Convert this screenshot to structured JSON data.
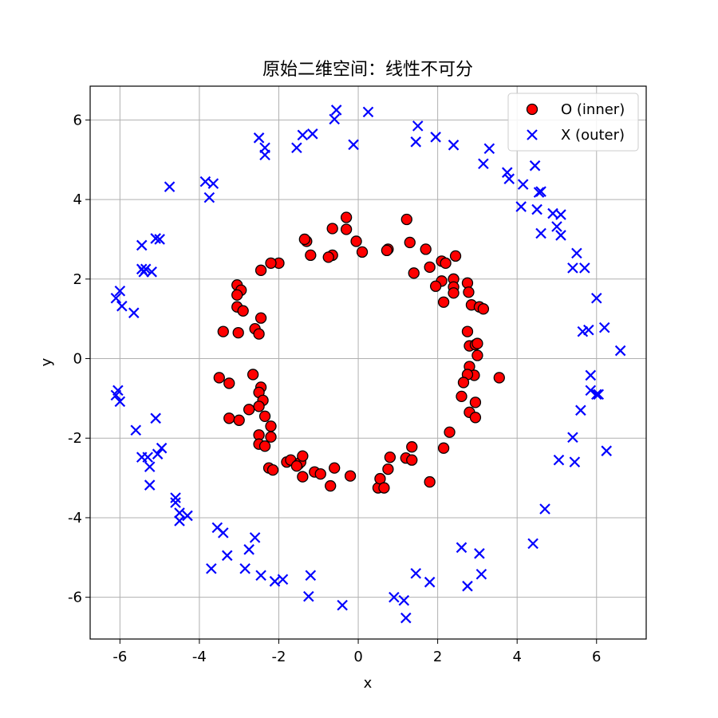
{
  "chart_data": {
    "type": "scatter",
    "title": "原始二维空间：线性不可分",
    "xlabel": "x",
    "ylabel": "y",
    "xlim": [
      -6.75,
      7.25
    ],
    "ylim": [
      -7.05,
      6.85
    ],
    "xticks": [
      -6,
      -4,
      -2,
      0,
      2,
      4,
      6
    ],
    "yticks": [
      -6,
      -4,
      -2,
      0,
      2,
      4,
      6
    ],
    "xtick_labels": [
      "-6",
      "-4",
      "-2",
      "0",
      "2",
      "4",
      "6"
    ],
    "ytick_labels": [
      "-6",
      "-4",
      "-2",
      "0",
      "2",
      "4",
      "6"
    ],
    "grid": true,
    "legend_position": "top-right",
    "series": [
      {
        "name": "O (inner)",
        "marker": "circle",
        "color": "#ff0000",
        "edge_color": "#000000",
        "points": [
          [
            -0.3,
            3.55
          ],
          [
            -0.65,
            3.27
          ],
          [
            -0.3,
            3.25
          ],
          [
            -0.05,
            2.95
          ],
          [
            0.1,
            2.68
          ],
          [
            -0.65,
            2.6
          ],
          [
            -0.75,
            2.55
          ],
          [
            -1.3,
            2.95
          ],
          [
            -1.35,
            3.0
          ],
          [
            -1.2,
            2.6
          ],
          [
            -2.0,
            2.4
          ],
          [
            -2.2,
            2.4
          ],
          [
            -2.45,
            2.22
          ],
          [
            0.75,
            2.75
          ],
          [
            0.72,
            2.72
          ],
          [
            1.22,
            3.5
          ],
          [
            1.3,
            2.92
          ],
          [
            1.7,
            2.75
          ],
          [
            1.4,
            2.15
          ],
          [
            1.8,
            2.3
          ],
          [
            2.1,
            2.45
          ],
          [
            2.2,
            2.4
          ],
          [
            2.45,
            2.58
          ],
          [
            2.1,
            1.95
          ],
          [
            2.4,
            2.0
          ],
          [
            1.95,
            1.82
          ],
          [
            2.4,
            1.8
          ],
          [
            2.4,
            1.65
          ],
          [
            2.15,
            1.42
          ],
          [
            2.75,
            1.9
          ],
          [
            2.78,
            1.67
          ],
          [
            2.85,
            1.35
          ],
          [
            3.05,
            1.3
          ],
          [
            3.15,
            1.25
          ],
          [
            -3.05,
            1.85
          ],
          [
            -2.95,
            1.72
          ],
          [
            -3.05,
            1.6
          ],
          [
            -3.05,
            1.3
          ],
          [
            -2.9,
            1.2
          ],
          [
            -2.45,
            1.02
          ],
          [
            -3.4,
            0.68
          ],
          [
            -3.02,
            0.65
          ],
          [
            -2.6,
            0.75
          ],
          [
            -2.5,
            0.62
          ],
          [
            2.75,
            0.68
          ],
          [
            2.8,
            0.32
          ],
          [
            2.95,
            0.35
          ],
          [
            3.0,
            0.38
          ],
          [
            3.0,
            0.08
          ],
          [
            2.8,
            -0.2
          ],
          [
            2.92,
            -0.42
          ],
          [
            2.75,
            -0.4
          ],
          [
            2.65,
            -0.6
          ],
          [
            2.6,
            -0.95
          ],
          [
            3.55,
            -0.48
          ],
          [
            -3.5,
            -0.48
          ],
          [
            -3.25,
            -0.62
          ],
          [
            -2.65,
            -0.4
          ],
          [
            -2.45,
            -0.72
          ],
          [
            -2.5,
            -0.85
          ],
          [
            -2.4,
            -1.05
          ],
          [
            -2.5,
            -1.2
          ],
          [
            -2.75,
            -1.28
          ],
          [
            -3.25,
            -1.5
          ],
          [
            -3.0,
            -1.55
          ],
          [
            -2.35,
            -1.45
          ],
          [
            -2.2,
            -1.7
          ],
          [
            -2.2,
            -1.97
          ],
          [
            -2.5,
            -1.92
          ],
          [
            -2.5,
            -2.15
          ],
          [
            -2.35,
            -2.2
          ],
          [
            -2.25,
            -2.75
          ],
          [
            -2.15,
            -2.8
          ],
          [
            2.95,
            -1.1
          ],
          [
            2.8,
            -1.35
          ],
          [
            2.95,
            -1.48
          ],
          [
            2.3,
            -1.85
          ],
          [
            2.15,
            -2.25
          ],
          [
            -1.8,
            -2.6
          ],
          [
            -1.7,
            -2.55
          ],
          [
            -1.5,
            -2.65
          ],
          [
            -1.45,
            -2.6
          ],
          [
            -1.4,
            -2.45
          ],
          [
            -1.55,
            -2.7
          ],
          [
            -1.4,
            -2.97
          ],
          [
            -1.1,
            -2.85
          ],
          [
            -0.95,
            -2.9
          ],
          [
            -0.7,
            -3.2
          ],
          [
            -0.6,
            -2.75
          ],
          [
            -0.2,
            -2.95
          ],
          [
            0.5,
            -3.25
          ],
          [
            0.55,
            -3.02
          ],
          [
            0.65,
            -3.25
          ],
          [
            0.75,
            -2.78
          ],
          [
            0.8,
            -2.48
          ],
          [
            1.2,
            -2.5
          ],
          [
            1.35,
            -2.55
          ],
          [
            1.35,
            -2.22
          ],
          [
            1.8,
            -3.1
          ]
        ]
      },
      {
        "name": "X (outer)",
        "marker": "x",
        "color": "#0000ff",
        "points": [
          [
            -0.55,
            6.25
          ],
          [
            -0.6,
            6.02
          ],
          [
            0.25,
            6.2
          ],
          [
            -0.12,
            5.38
          ],
          [
            -2.5,
            5.55
          ],
          [
            -2.35,
            5.3
          ],
          [
            -2.35,
            5.12
          ],
          [
            -1.55,
            5.3
          ],
          [
            -1.4,
            5.62
          ],
          [
            -1.15,
            5.65
          ],
          [
            1.5,
            5.85
          ],
          [
            1.45,
            5.45
          ],
          [
            1.95,
            5.57
          ],
          [
            2.4,
            5.37
          ],
          [
            3.3,
            5.28
          ],
          [
            3.15,
            4.9
          ],
          [
            -3.85,
            4.45
          ],
          [
            -3.65,
            4.4
          ],
          [
            -3.75,
            4.05
          ],
          [
            -4.75,
            4.32
          ],
          [
            3.75,
            4.68
          ],
          [
            3.8,
            4.52
          ],
          [
            4.15,
            4.38
          ],
          [
            4.45,
            4.85
          ],
          [
            4.55,
            4.18
          ],
          [
            4.6,
            4.2
          ],
          [
            4.1,
            3.82
          ],
          [
            4.5,
            3.75
          ],
          [
            4.9,
            3.65
          ],
          [
            5.1,
            3.62
          ],
          [
            5.0,
            3.32
          ],
          [
            5.1,
            3.1
          ],
          [
            4.6,
            3.15
          ],
          [
            -5.1,
            3.02
          ],
          [
            -5.0,
            3.0
          ],
          [
            -5.45,
            2.85
          ],
          [
            -5.45,
            2.25
          ],
          [
            -5.35,
            2.25
          ],
          [
            -5.2,
            2.18
          ],
          [
            -5.4,
            2.18
          ],
          [
            5.5,
            2.65
          ],
          [
            5.4,
            2.28
          ],
          [
            5.7,
            2.28
          ],
          [
            6.0,
            1.52
          ],
          [
            -6.0,
            1.7
          ],
          [
            -6.1,
            1.52
          ],
          [
            -5.95,
            1.32
          ],
          [
            -5.65,
            1.15
          ],
          [
            5.65,
            0.68
          ],
          [
            5.8,
            0.72
          ],
          [
            6.2,
            0.78
          ],
          [
            6.6,
            0.2
          ],
          [
            5.85,
            -0.42
          ],
          [
            5.85,
            -0.8
          ],
          [
            6.0,
            -0.9
          ],
          [
            6.05,
            -0.9
          ],
          [
            -6.05,
            -0.8
          ],
          [
            -6.1,
            -0.92
          ],
          [
            -6.0,
            -1.08
          ],
          [
            -5.6,
            -1.8
          ],
          [
            5.6,
            -1.3
          ],
          [
            5.4,
            -1.98
          ],
          [
            5.05,
            -2.55
          ],
          [
            5.45,
            -2.6
          ],
          [
            6.25,
            -2.32
          ],
          [
            -5.1,
            -1.5
          ],
          [
            -4.95,
            -2.25
          ],
          [
            -5.05,
            -2.4
          ],
          [
            -5.45,
            -2.48
          ],
          [
            -5.3,
            -2.48
          ],
          [
            -5.25,
            -2.72
          ],
          [
            -5.25,
            -3.18
          ],
          [
            4.7,
            -3.78
          ],
          [
            4.4,
            -4.65
          ],
          [
            -4.6,
            -3.5
          ],
          [
            -4.6,
            -3.62
          ],
          [
            -4.5,
            -3.88
          ],
          [
            -4.5,
            -4.08
          ],
          [
            -4.3,
            -3.95
          ],
          [
            -3.55,
            -4.25
          ],
          [
            -3.4,
            -4.38
          ],
          [
            -2.6,
            -4.5
          ],
          [
            -2.75,
            -4.8
          ],
          [
            -3.3,
            -4.95
          ],
          [
            -3.7,
            -5.28
          ],
          [
            -2.85,
            -5.28
          ],
          [
            -2.45,
            -5.45
          ],
          [
            -2.1,
            -5.6
          ],
          [
            -1.9,
            -5.55
          ],
          [
            -1.2,
            -5.45
          ],
          [
            -1.25,
            -5.98
          ],
          [
            -0.4,
            -6.2
          ],
          [
            2.6,
            -4.75
          ],
          [
            3.05,
            -4.9
          ],
          [
            3.1,
            -5.42
          ],
          [
            2.75,
            -5.72
          ],
          [
            1.8,
            -5.62
          ],
          [
            1.45,
            -5.4
          ],
          [
            0.9,
            -6.0
          ],
          [
            1.15,
            -6.08
          ],
          [
            1.2,
            -6.52
          ]
        ]
      }
    ]
  }
}
